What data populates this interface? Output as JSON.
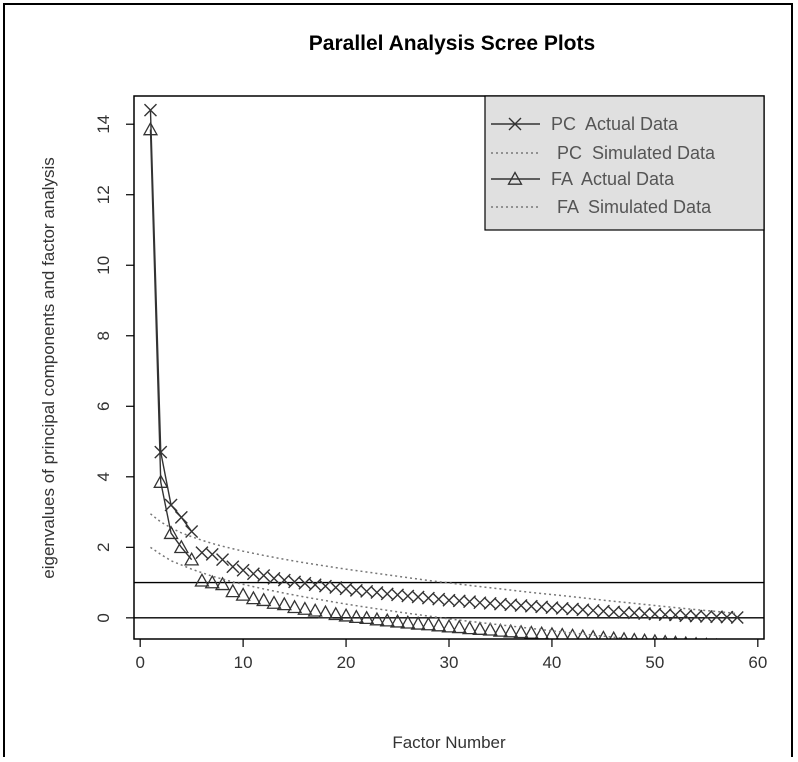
{
  "chart_data": {
    "type": "line",
    "title": "Parallel Analysis Scree Plots",
    "xlabel": "Factor Number",
    "ylabel": "eigenvalues of principal components and factor analysis",
    "xlim": [
      -0.6,
      60.6
    ],
    "ylim": [
      -0.6,
      14.8
    ],
    "xticks": [
      0,
      10,
      20,
      30,
      40,
      50,
      60
    ],
    "yticks": [
      0,
      2,
      4,
      6,
      8,
      10,
      12,
      14
    ],
    "reference_lines": [
      1,
      0
    ],
    "legend": {
      "position": "top-right",
      "entries": [
        "PC  Actual Data",
        "PC  Simulated Data",
        "FA  Actual Data",
        "FA  Simulated Data"
      ]
    },
    "series": [
      {
        "name": "PC  Actual Data",
        "style": "solid line with x markers",
        "x": [
          1,
          2,
          3,
          4,
          5,
          6,
          7,
          8,
          9,
          10,
          11,
          12,
          13,
          14,
          15,
          16,
          17,
          18,
          19,
          20,
          21,
          22,
          23,
          24,
          25,
          26,
          27,
          28,
          29,
          30,
          31,
          32,
          33,
          34,
          35,
          36,
          37,
          38,
          39,
          40,
          41,
          42,
          43,
          44,
          45,
          46,
          47,
          48,
          49,
          50,
          51,
          52,
          53,
          54,
          55,
          56,
          57,
          58
        ],
        "values": [
          14.4,
          4.7,
          3.2,
          2.85,
          2.45,
          1.85,
          1.8,
          1.65,
          1.45,
          1.35,
          1.25,
          1.2,
          1.12,
          1.07,
          1.02,
          0.98,
          0.94,
          0.9,
          0.86,
          0.82,
          0.78,
          0.75,
          0.72,
          0.68,
          0.65,
          0.62,
          0.59,
          0.56,
          0.53,
          0.5,
          0.48,
          0.46,
          0.43,
          0.41,
          0.39,
          0.37,
          0.35,
          0.33,
          0.31,
          0.29,
          0.27,
          0.25,
          0.23,
          0.21,
          0.19,
          0.17,
          0.15,
          0.14,
          0.12,
          0.11,
          0.09,
          0.08,
          0.06,
          0.05,
          0.04,
          0.03,
          0.02,
          0.01
        ]
      },
      {
        "name": "PC  Simulated Data",
        "style": "dotted line",
        "x": [
          1,
          2,
          3,
          4,
          5,
          6,
          7,
          8,
          9,
          10,
          12,
          14,
          16,
          18,
          20,
          22,
          25,
          28,
          30,
          32,
          35,
          38,
          40,
          42,
          45,
          48,
          50,
          53,
          56,
          58
        ],
        "values": [
          2.95,
          2.72,
          2.55,
          2.41,
          2.3,
          2.2,
          2.11,
          2.03,
          1.96,
          1.89,
          1.77,
          1.66,
          1.56,
          1.47,
          1.38,
          1.3,
          1.18,
          1.06,
          0.99,
          0.92,
          0.82,
          0.72,
          0.66,
          0.6,
          0.5,
          0.41,
          0.35,
          0.26,
          0.18,
          0.12
        ]
      },
      {
        "name": "FA  Actual Data",
        "style": "solid line with triangle markers",
        "x": [
          1,
          2,
          3,
          4,
          5,
          6,
          7,
          8,
          9,
          10,
          11,
          12,
          13,
          14,
          15,
          16,
          17,
          18,
          19,
          20,
          21,
          22,
          23,
          24,
          25,
          26,
          27,
          28,
          29,
          30,
          31,
          32,
          33,
          34,
          35,
          36,
          37,
          38,
          39,
          40,
          41,
          42,
          43,
          44,
          45,
          46,
          47,
          48,
          49,
          50,
          51,
          52,
          53,
          54,
          55,
          56,
          57,
          58
        ],
        "values": [
          13.85,
          3.85,
          2.4,
          2.0,
          1.65,
          1.05,
          1.0,
          0.95,
          0.75,
          0.65,
          0.55,
          0.5,
          0.42,
          0.38,
          0.3,
          0.25,
          0.2,
          0.15,
          0.1,
          0.06,
          0.02,
          -0.01,
          -0.05,
          -0.08,
          -0.11,
          -0.14,
          -0.17,
          -0.19,
          -0.22,
          -0.25,
          -0.27,
          -0.3,
          -0.32,
          -0.34,
          -0.37,
          -0.39,
          -0.41,
          -0.43,
          -0.45,
          -0.47,
          -0.49,
          -0.51,
          -0.53,
          -0.55,
          -0.57,
          -0.59,
          -0.61,
          -0.63,
          -0.65,
          -0.67,
          -0.69,
          -0.71,
          -0.73,
          -0.75,
          -0.77,
          -0.79,
          -0.81,
          -0.83
        ]
      },
      {
        "name": "FA  Simulated Data",
        "style": "dotted line",
        "x": [
          1,
          2,
          3,
          4,
          5,
          6,
          7,
          8,
          9,
          10,
          12,
          14,
          16,
          18,
          20,
          22,
          25,
          28,
          30,
          32,
          35,
          38,
          40,
          42,
          45,
          48,
          50,
          53,
          56,
          58
        ],
        "values": [
          2.0,
          1.8,
          1.62,
          1.5,
          1.38,
          1.28,
          1.18,
          1.1,
          1.02,
          0.95,
          0.82,
          0.7,
          0.59,
          0.49,
          0.39,
          0.3,
          0.17,
          0.05,
          -0.03,
          -0.1,
          -0.2,
          -0.3,
          -0.37,
          -0.43,
          -0.52,
          -0.61,
          -0.67,
          -0.75,
          -0.83,
          -0.88
        ]
      }
    ]
  }
}
